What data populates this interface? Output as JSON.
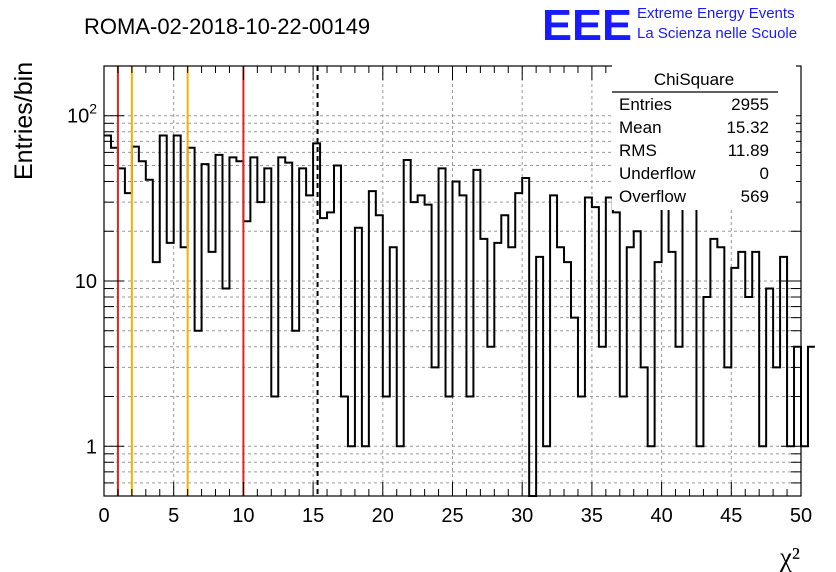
{
  "title": "ROMA-02-2018-10-22-00149",
  "logo": {
    "mark": "EEE",
    "line1": "Extreme Energy Events",
    "line2": "La Scienza nelle Scuole",
    "color": "#1a1aff"
  },
  "stats": {
    "name": "ChiSquare",
    "rows": [
      {
        "label": "Entries",
        "value": "2955"
      },
      {
        "label": "Mean",
        "value": "15.32"
      },
      {
        "label": "RMS",
        "value": "11.89"
      },
      {
        "label": "Underflow",
        "value": "0"
      },
      {
        "label": "Overflow",
        "value": "569"
      }
    ]
  },
  "chart_data": {
    "type": "histogram",
    "xlabel": "χ²",
    "ylabel": "Entries/bin",
    "xlim": [
      0,
      50
    ],
    "ylim": [
      0.5,
      200
    ],
    "yscale": "log",
    "bin_width": 0.5,
    "x_ticks": [
      "0",
      "5",
      "10",
      "15",
      "20",
      "25",
      "30",
      "35",
      "40",
      "45",
      "50"
    ],
    "y_ticks": [
      {
        "value": 1,
        "label": "1"
      },
      {
        "value": 10,
        "label": "10"
      },
      {
        "value": 100,
        "label": "10^2"
      }
    ],
    "grid": true,
    "values": [
      76,
      64,
      48,
      34,
      65,
      53,
      41,
      13,
      76,
      17,
      76,
      16,
      64,
      5,
      51,
      15,
      58,
      9,
      56,
      53,
      23,
      56,
      30,
      48,
      2,
      56,
      52,
      5,
      48,
      33,
      68,
      24,
      26,
      50,
      2,
      1,
      21,
      1,
      35,
      25,
      2,
      16,
      1,
      54,
      30,
      33,
      29,
      3,
      48,
      2,
      40,
      33,
      2,
      47,
      18,
      4,
      17,
      25,
      16,
      34,
      42,
      0,
      14,
      1,
      33,
      16,
      13,
      6,
      2,
      32,
      28,
      4,
      32,
      26,
      2,
      16,
      20,
      3,
      1,
      13,
      35,
      15,
      4,
      43,
      30,
      1,
      8,
      18,
      16,
      3,
      12,
      15,
      8,
      15,
      1,
      9,
      3,
      14,
      1,
      4,
      1,
      4
    ],
    "vlines": [
      {
        "x": 1,
        "color": "#e0261f",
        "style": "solid"
      },
      {
        "x": 2,
        "color": "#f0b400",
        "style": "solid"
      },
      {
        "x": 6,
        "color": "#f0b400",
        "style": "solid"
      },
      {
        "x": 10,
        "color": "#e0261f",
        "style": "solid"
      },
      {
        "x": 15.32,
        "color": "#000000",
        "style": "dashed"
      }
    ]
  }
}
